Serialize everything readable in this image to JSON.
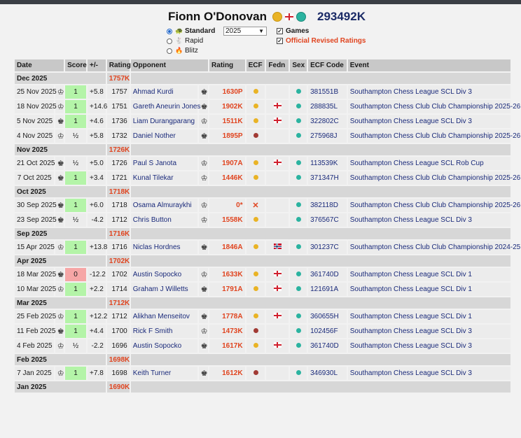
{
  "player": {
    "name": "Fionn O'Donovan",
    "id": "293492K"
  },
  "controls": {
    "rating_types": [
      {
        "label": "Standard",
        "icon": "🐢",
        "selected": true
      },
      {
        "label": "Rapid",
        "icon": "🐇",
        "selected": false
      },
      {
        "label": "Blitz",
        "icon": "🔥",
        "selected": false
      }
    ],
    "year": "2025",
    "games_label": "Games",
    "official_label": "Official Revised Ratings"
  },
  "table": {
    "headers": {
      "date": "Date",
      "score": "Score",
      "pm": "+/-",
      "rating": "Rating",
      "opponent": "Opponent",
      "opp_rating": "Rating",
      "ecf": "ECF",
      "fedn": "Fedn",
      "sex": "Sex",
      "ecf_code": "ECF Code",
      "event": "Event"
    },
    "rows": [
      {
        "type": "month",
        "label": "Dec 2025",
        "rating": "1757K"
      },
      {
        "type": "game",
        "date": "25 Nov 2025",
        "color": "w",
        "score": "1",
        "result": "win",
        "pm": "+5.8",
        "rating": "1757",
        "opponent": "Ahmad Kurdi",
        "opp_color": "b",
        "opp_rating": "1630P",
        "ecf": "gold",
        "fedn": "",
        "sex": "teal",
        "code": "381551B",
        "event": "Southampton Chess League SCL Div 3"
      },
      {
        "type": "game",
        "date": "18 Nov 2025",
        "color": "w",
        "score": "1",
        "result": "win",
        "pm": "+14.6",
        "rating": "1751",
        "opponent": "Gareth Aneurin Jones",
        "opp_color": "b",
        "opp_rating": "1902K",
        "ecf": "gold",
        "fedn": "eng",
        "sex": "teal",
        "code": "288835L",
        "event": "Southampton Chess Club Club Championship 2025-26"
      },
      {
        "type": "game",
        "date": "5 Nov 2025",
        "color": "b",
        "score": "1",
        "result": "win",
        "pm": "+4.6",
        "rating": "1736",
        "opponent": "Liam Durangparang",
        "opp_color": "w",
        "opp_rating": "1511K",
        "ecf": "gold",
        "fedn": "eng",
        "sex": "teal",
        "code": "322802C",
        "event": "Southampton Chess League SCL Div 3"
      },
      {
        "type": "game",
        "date": "4 Nov 2025",
        "color": "w",
        "score": "½",
        "result": "draw",
        "pm": "+5.8",
        "rating": "1732",
        "opponent": "Daniel Nother",
        "opp_color": "b",
        "opp_rating": "1895P",
        "ecf": "dark",
        "fedn": "",
        "sex": "teal",
        "code": "275968J",
        "event": "Southampton Chess Club Club Championship 2025-26"
      },
      {
        "type": "month",
        "label": "Nov 2025",
        "rating": "1726K"
      },
      {
        "type": "game",
        "date": "21 Oct 2025",
        "color": "b",
        "score": "½",
        "result": "draw",
        "pm": "+5.0",
        "rating": "1726",
        "opponent": "Paul S Janota",
        "opp_color": "w",
        "opp_rating": "1907A",
        "ecf": "gold",
        "fedn": "eng",
        "sex": "teal",
        "code": "113539K",
        "event": "Southampton Chess League SCL Rob Cup"
      },
      {
        "type": "game",
        "date": "7 Oct 2025",
        "color": "b",
        "score": "1",
        "result": "win",
        "pm": "+3.4",
        "rating": "1721",
        "opponent": "Kunal Tilekar",
        "opp_color": "w",
        "opp_rating": "1446K",
        "ecf": "gold",
        "fedn": "",
        "sex": "teal",
        "code": "371347H",
        "event": "Southampton Chess Club Club Championship 2025-26"
      },
      {
        "type": "month",
        "label": "Oct 2025",
        "rating": "1718K"
      },
      {
        "type": "game",
        "date": "30 Sep 2025",
        "color": "b",
        "score": "1",
        "result": "win",
        "pm": "+6.0",
        "rating": "1718",
        "opponent": "Osama Almuraykhi",
        "opp_color": "w",
        "opp_rating": "0*",
        "ecf": "x",
        "fedn": "",
        "sex": "teal",
        "code": "382118D",
        "event": "Southampton Chess Club Club Championship 2025-26"
      },
      {
        "type": "game",
        "date": "23 Sep 2025",
        "color": "b",
        "score": "½",
        "result": "draw",
        "pm": "-4.2",
        "rating": "1712",
        "opponent": "Chris Button",
        "opp_color": "w",
        "opp_rating": "1558K",
        "ecf": "gold",
        "fedn": "",
        "sex": "teal",
        "code": "376567C",
        "event": "Southampton Chess League SCL Div 3"
      },
      {
        "type": "month",
        "label": "Sep 2025",
        "rating": "1716K"
      },
      {
        "type": "game",
        "date": "15 Apr 2025",
        "color": "w",
        "score": "1",
        "result": "win",
        "pm": "+13.8",
        "rating": "1716",
        "opponent": "Niclas Hordnes",
        "opp_color": "b",
        "opp_rating": "1846A",
        "ecf": "gold",
        "fedn": "nor",
        "sex": "teal",
        "code": "301237C",
        "event": "Southampton Chess Club Club Championship 2024-25"
      },
      {
        "type": "month",
        "label": "Apr 2025",
        "rating": "1702K"
      },
      {
        "type": "game",
        "date": "18 Mar 2025",
        "color": "b",
        "score": "0",
        "result": "loss",
        "pm": "-12.2",
        "rating": "1702",
        "opponent": "Austin Sopocko",
        "opp_color": "w",
        "opp_rating": "1633K",
        "ecf": "gold",
        "fedn": "eng",
        "sex": "teal",
        "code": "361740D",
        "event": "Southampton Chess League SCL Div 1"
      },
      {
        "type": "game",
        "date": "10 Mar 2025",
        "color": "w",
        "score": "1",
        "result": "win",
        "pm": "+2.2",
        "rating": "1714",
        "opponent": "Graham J Willetts",
        "opp_color": "b",
        "opp_rating": "1791A",
        "ecf": "gold",
        "fedn": "eng",
        "sex": "teal",
        "code": "121691A",
        "event": "Southampton Chess League SCL Div 1"
      },
      {
        "type": "month",
        "label": "Mar 2025",
        "rating": "1712K"
      },
      {
        "type": "game",
        "date": "25 Feb 2025",
        "color": "w",
        "score": "1",
        "result": "win",
        "pm": "+12.2",
        "rating": "1712",
        "opponent": "Alikhan Menseitov",
        "opp_color": "b",
        "opp_rating": "1778A",
        "ecf": "gold",
        "fedn": "eng",
        "sex": "teal",
        "code": "360655H",
        "event": "Southampton Chess League SCL Div 1"
      },
      {
        "type": "game",
        "date": "11 Feb 2025",
        "color": "b",
        "score": "1",
        "result": "win",
        "pm": "+4.4",
        "rating": "1700",
        "opponent": "Rick F Smith",
        "opp_color": "w",
        "opp_rating": "1473K",
        "ecf": "dark",
        "fedn": "",
        "sex": "teal",
        "code": "102456F",
        "event": "Southampton Chess League SCL Div 3"
      },
      {
        "type": "game",
        "date": "4 Feb 2025",
        "color": "w",
        "score": "½",
        "result": "draw",
        "pm": "-2.2",
        "rating": "1696",
        "opponent": "Austin Sopocko",
        "opp_color": "b",
        "opp_rating": "1617K",
        "ecf": "gold",
        "fedn": "eng",
        "sex": "teal",
        "code": "361740D",
        "event": "Southampton Chess League SCL Div 3"
      },
      {
        "type": "month",
        "label": "Feb 2025",
        "rating": "1698K"
      },
      {
        "type": "game",
        "date": "7 Jan 2025",
        "color": "w",
        "score": "1",
        "result": "win",
        "pm": "+7.8",
        "rating": "1698",
        "opponent": "Keith Turner",
        "opp_color": "b",
        "opp_rating": "1612K",
        "ecf": "dark",
        "fedn": "",
        "sex": "teal",
        "code": "346930L",
        "event": "Southampton Chess League SCL Div 3"
      },
      {
        "type": "month",
        "label": "Jan 2025",
        "rating": "1690K"
      }
    ]
  }
}
